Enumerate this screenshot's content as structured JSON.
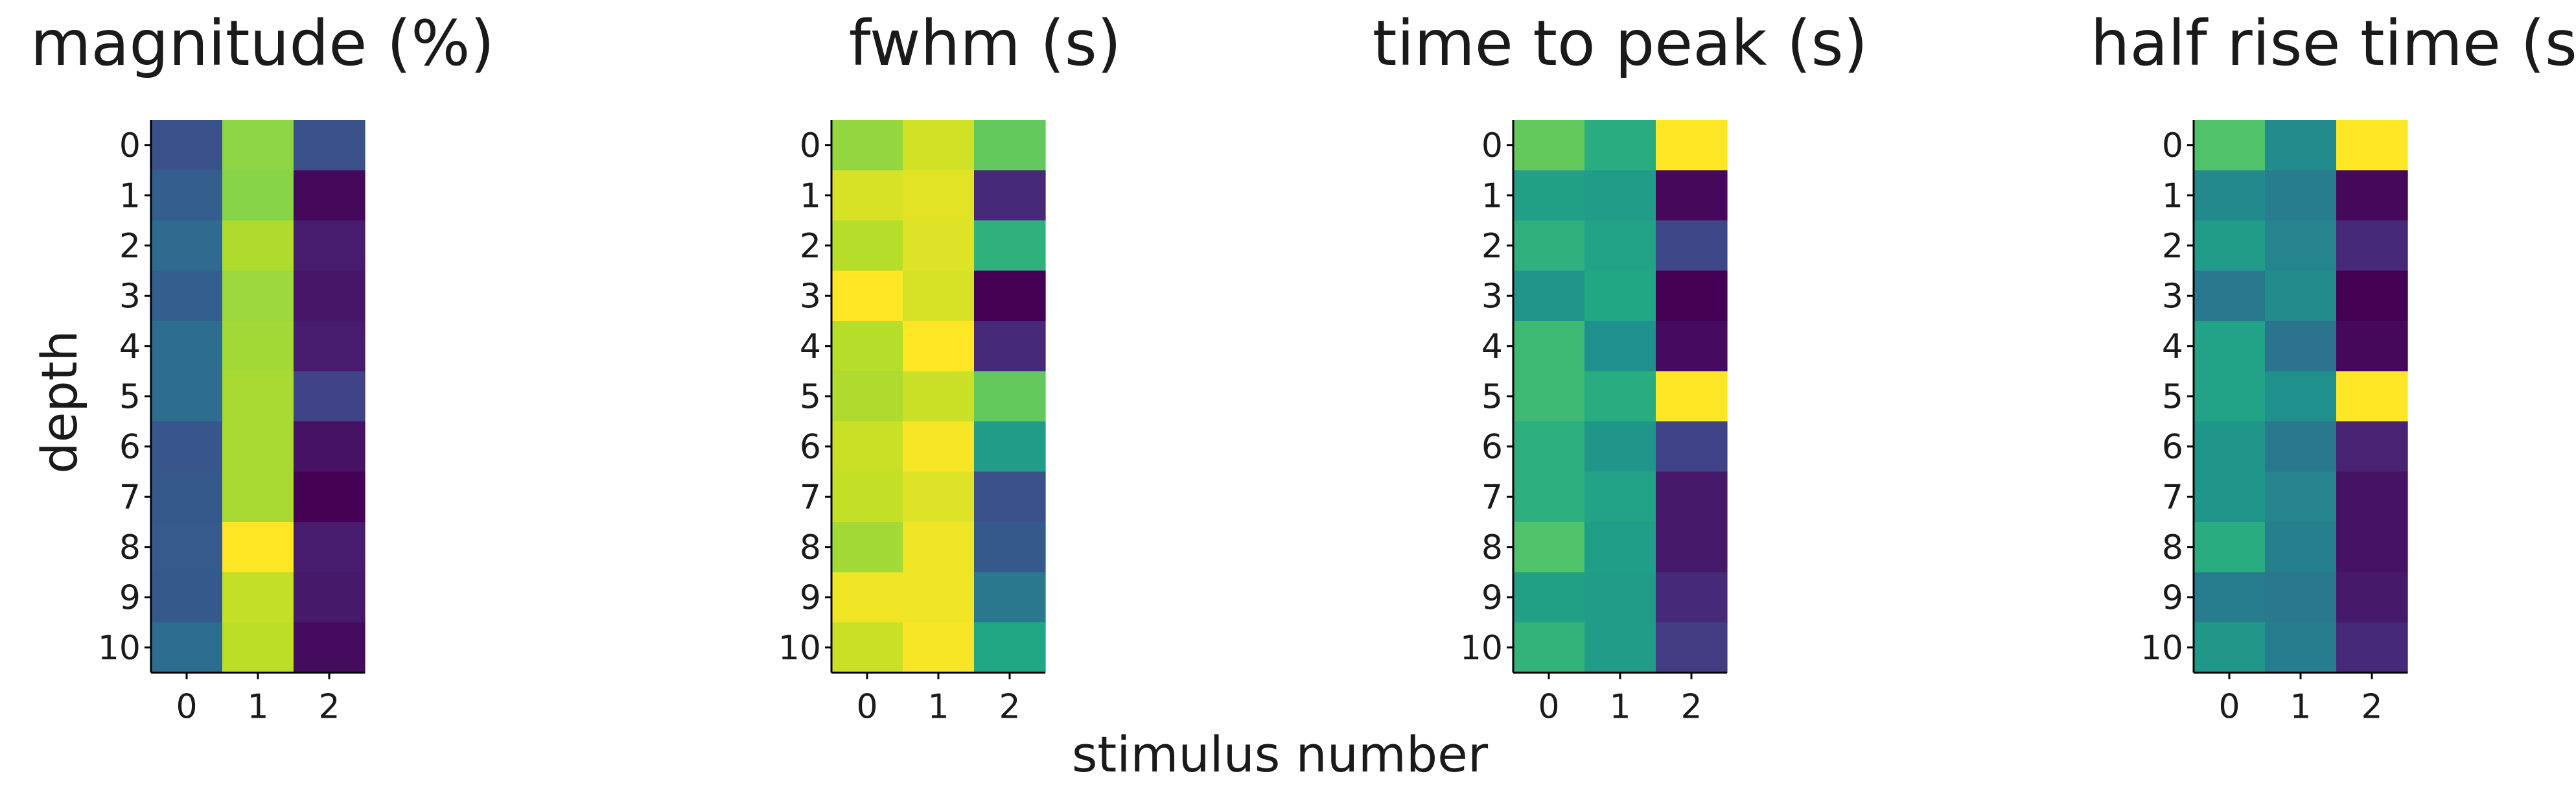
{
  "figure": {
    "ylabel": "depth",
    "xlabel": "stimulus number",
    "colormap": "viridis"
  },
  "chart_data": [
    {
      "type": "heatmap",
      "title": "magnitude (%)",
      "x_categories": [
        "0",
        "1",
        "2"
      ],
      "y_categories": [
        "0",
        "1",
        "2",
        "3",
        "4",
        "5",
        "6",
        "7",
        "8",
        "9",
        "10"
      ],
      "values": [
        [
          0.25,
          0.83,
          0.25
        ],
        [
          0.3,
          0.82,
          0.02
        ],
        [
          0.35,
          0.88,
          0.08
        ],
        [
          0.3,
          0.85,
          0.06
        ],
        [
          0.36,
          0.86,
          0.08
        ],
        [
          0.36,
          0.87,
          0.2
        ],
        [
          0.27,
          0.87,
          0.05
        ],
        [
          0.28,
          0.87,
          0.0
        ],
        [
          0.29,
          1.0,
          0.08
        ],
        [
          0.28,
          0.91,
          0.07
        ],
        [
          0.36,
          0.9,
          0.03
        ]
      ]
    },
    {
      "type": "heatmap",
      "title": "fwhm (s)",
      "x_categories": [
        "0",
        "1",
        "2"
      ],
      "y_categories": [
        "0",
        "1",
        "2",
        "3",
        "4",
        "5",
        "6",
        "7",
        "8",
        "9",
        "10"
      ],
      "values": [
        [
          0.84,
          0.93,
          0.76
        ],
        [
          0.94,
          0.96,
          0.12
        ],
        [
          0.89,
          0.95,
          0.64
        ],
        [
          1.0,
          0.94,
          0.0
        ],
        [
          0.89,
          1.0,
          0.12
        ],
        [
          0.88,
          0.92,
          0.76
        ],
        [
          0.92,
          0.99,
          0.55
        ],
        [
          0.91,
          0.95,
          0.25
        ],
        [
          0.86,
          0.98,
          0.28
        ],
        [
          0.98,
          0.98,
          0.4
        ],
        [
          0.92,
          0.99,
          0.6
        ]
      ]
    },
    {
      "type": "heatmap",
      "title": "time to peak (s)",
      "x_categories": [
        "0",
        "1",
        "2"
      ],
      "y_categories": [
        "0",
        "1",
        "2",
        "3",
        "4",
        "5",
        "6",
        "7",
        "8",
        "9",
        "10"
      ],
      "values": [
        [
          0.76,
          0.62,
          1.0
        ],
        [
          0.57,
          0.55,
          0.02
        ],
        [
          0.64,
          0.58,
          0.22
        ],
        [
          0.52,
          0.6,
          0.0
        ],
        [
          0.68,
          0.5,
          0.03
        ],
        [
          0.68,
          0.62,
          1.0
        ],
        [
          0.63,
          0.52,
          0.2
        ],
        [
          0.63,
          0.58,
          0.07
        ],
        [
          0.72,
          0.56,
          0.07
        ],
        [
          0.57,
          0.55,
          0.12
        ],
        [
          0.65,
          0.55,
          0.18
        ]
      ]
    },
    {
      "type": "heatmap",
      "title": "half rise time (s)",
      "x_categories": [
        "0",
        "1",
        "2"
      ],
      "y_categories": [
        "0",
        "1",
        "2",
        "3",
        "4",
        "5",
        "6",
        "7",
        "8",
        "9",
        "10"
      ],
      "values": [
        [
          0.72,
          0.48,
          1.0
        ],
        [
          0.47,
          0.42,
          0.02
        ],
        [
          0.55,
          0.45,
          0.12
        ],
        [
          0.4,
          0.48,
          0.0
        ],
        [
          0.58,
          0.38,
          0.02
        ],
        [
          0.58,
          0.5,
          1.0
        ],
        [
          0.52,
          0.4,
          0.1
        ],
        [
          0.52,
          0.45,
          0.05
        ],
        [
          0.62,
          0.43,
          0.05
        ],
        [
          0.42,
          0.4,
          0.07
        ],
        [
          0.53,
          0.42,
          0.12
        ]
      ]
    }
  ]
}
